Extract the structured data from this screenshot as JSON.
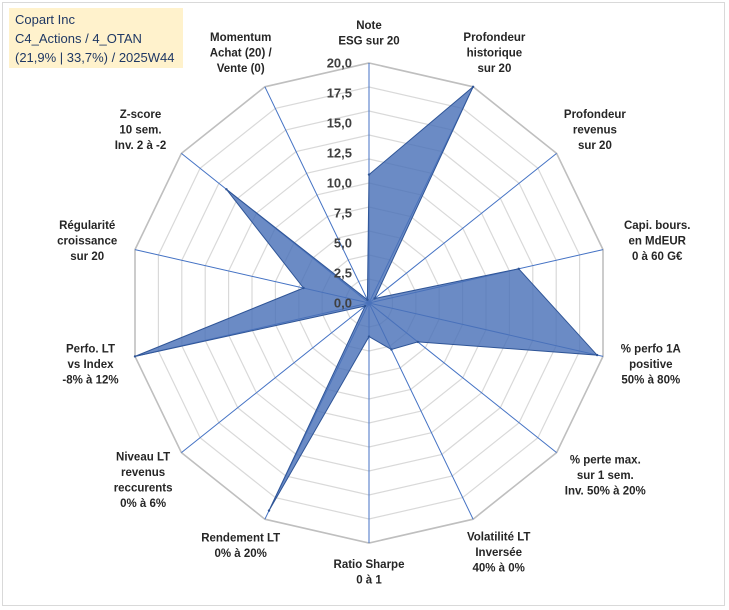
{
  "title": {
    "company": "Copart Inc",
    "category": "C4_Actions / 4_OTAN",
    "scores": "(21,9% | 33,7%) / 2025W44"
  },
  "chart_data": {
    "type": "radar",
    "title": "Copart Inc",
    "rlim": [
      0,
      20
    ],
    "ticks": [
      "0,0",
      "2,5",
      "5,0",
      "7,5",
      "10,0",
      "12,5",
      "15,0",
      "17,5",
      "20,0"
    ],
    "grid": true,
    "axes": [
      [
        "Note",
        "ESG sur 20"
      ],
      [
        "Profondeur",
        "historique",
        "sur 20"
      ],
      [
        "Profondeur",
        "revenus",
        "sur 20"
      ],
      [
        "Capi. bours.",
        "en MdEUR",
        "0 à 60 G€"
      ],
      [
        "% perfo 1A",
        "positive",
        "50% à 80%"
      ],
      [
        "% perte max.",
        "sur 1 sem.",
        "Inv. 50% à 20%"
      ],
      [
        "Volatilité LT",
        "Inversée",
        "40% à 0%"
      ],
      [
        "Ratio Sharpe",
        "0 à 1"
      ],
      [
        "Rendement LT",
        "0% à 20%"
      ],
      [
        "Niveau LT",
        "revenus",
        "reccurents",
        "0% à 6%"
      ],
      [
        "Perfo. LT",
        "vs Index",
        "-8% à 12%"
      ],
      [
        "Régularité",
        "croissance",
        "sur 20"
      ],
      [
        "Z-score",
        "10 sem.",
        "Inv. 2 à -2"
      ],
      [
        "Momentum",
        "Achat (20) /",
        "Vente (0)"
      ]
    ],
    "series": [
      {
        "name": "Copart Inc",
        "values": [
          10.7,
          20.0,
          0.6,
          12.8,
          19.5,
          5.2,
          4.3,
          2.8,
          19.2,
          0.4,
          20.0,
          5.6,
          15.2,
          0.3
        ],
        "color": "#4a72b8"
      }
    ]
  }
}
